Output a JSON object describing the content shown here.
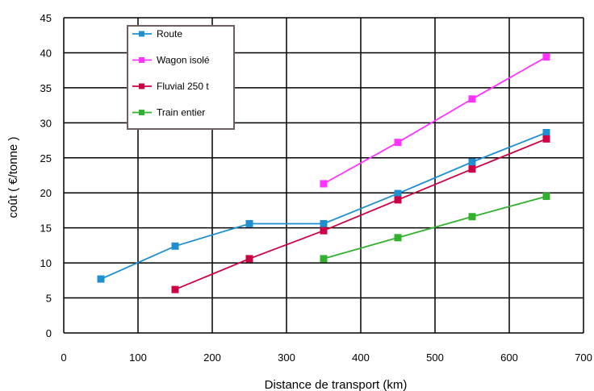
{
  "chart_data": {
    "type": "line",
    "xlabel": "Distance de transport (km)",
    "ylabel": "coût ( €/tonne )",
    "xlim": [
      0,
      700
    ],
    "ylim": [
      0,
      45
    ],
    "x_ticks": [
      "0",
      "100",
      "200",
      "300",
      "400",
      "500",
      "600",
      "700"
    ],
    "y_ticks": [
      "0",
      "5",
      "10",
      "15",
      "20",
      "25",
      "30",
      "35",
      "40",
      "45"
    ],
    "grid": true,
    "legend_position": "top-left",
    "series": [
      {
        "name": "Route",
        "color": "#1f8fd0",
        "x": [
          50,
          150,
          250,
          350,
          450,
          550,
          650
        ],
        "y": [
          7.7,
          12.4,
          15.6,
          15.6,
          19.9,
          24.4,
          28.6
        ]
      },
      {
        "name": "Wagon isolé",
        "color": "#ff33ff",
        "x": [
          350,
          450,
          550,
          650
        ],
        "y": [
          21.3,
          27.2,
          33.4,
          39.4
        ]
      },
      {
        "name": "Fluvial 250 t",
        "color": "#cc0044",
        "x": [
          150,
          250,
          350,
          450,
          550,
          650
        ],
        "y": [
          6.2,
          10.6,
          14.6,
          19.0,
          23.4,
          27.7
        ]
      },
      {
        "name": "Train entier",
        "color": "#33b02e",
        "x": [
          350,
          450,
          550,
          650
        ],
        "y": [
          10.6,
          13.6,
          16.6,
          19.5
        ]
      }
    ]
  }
}
